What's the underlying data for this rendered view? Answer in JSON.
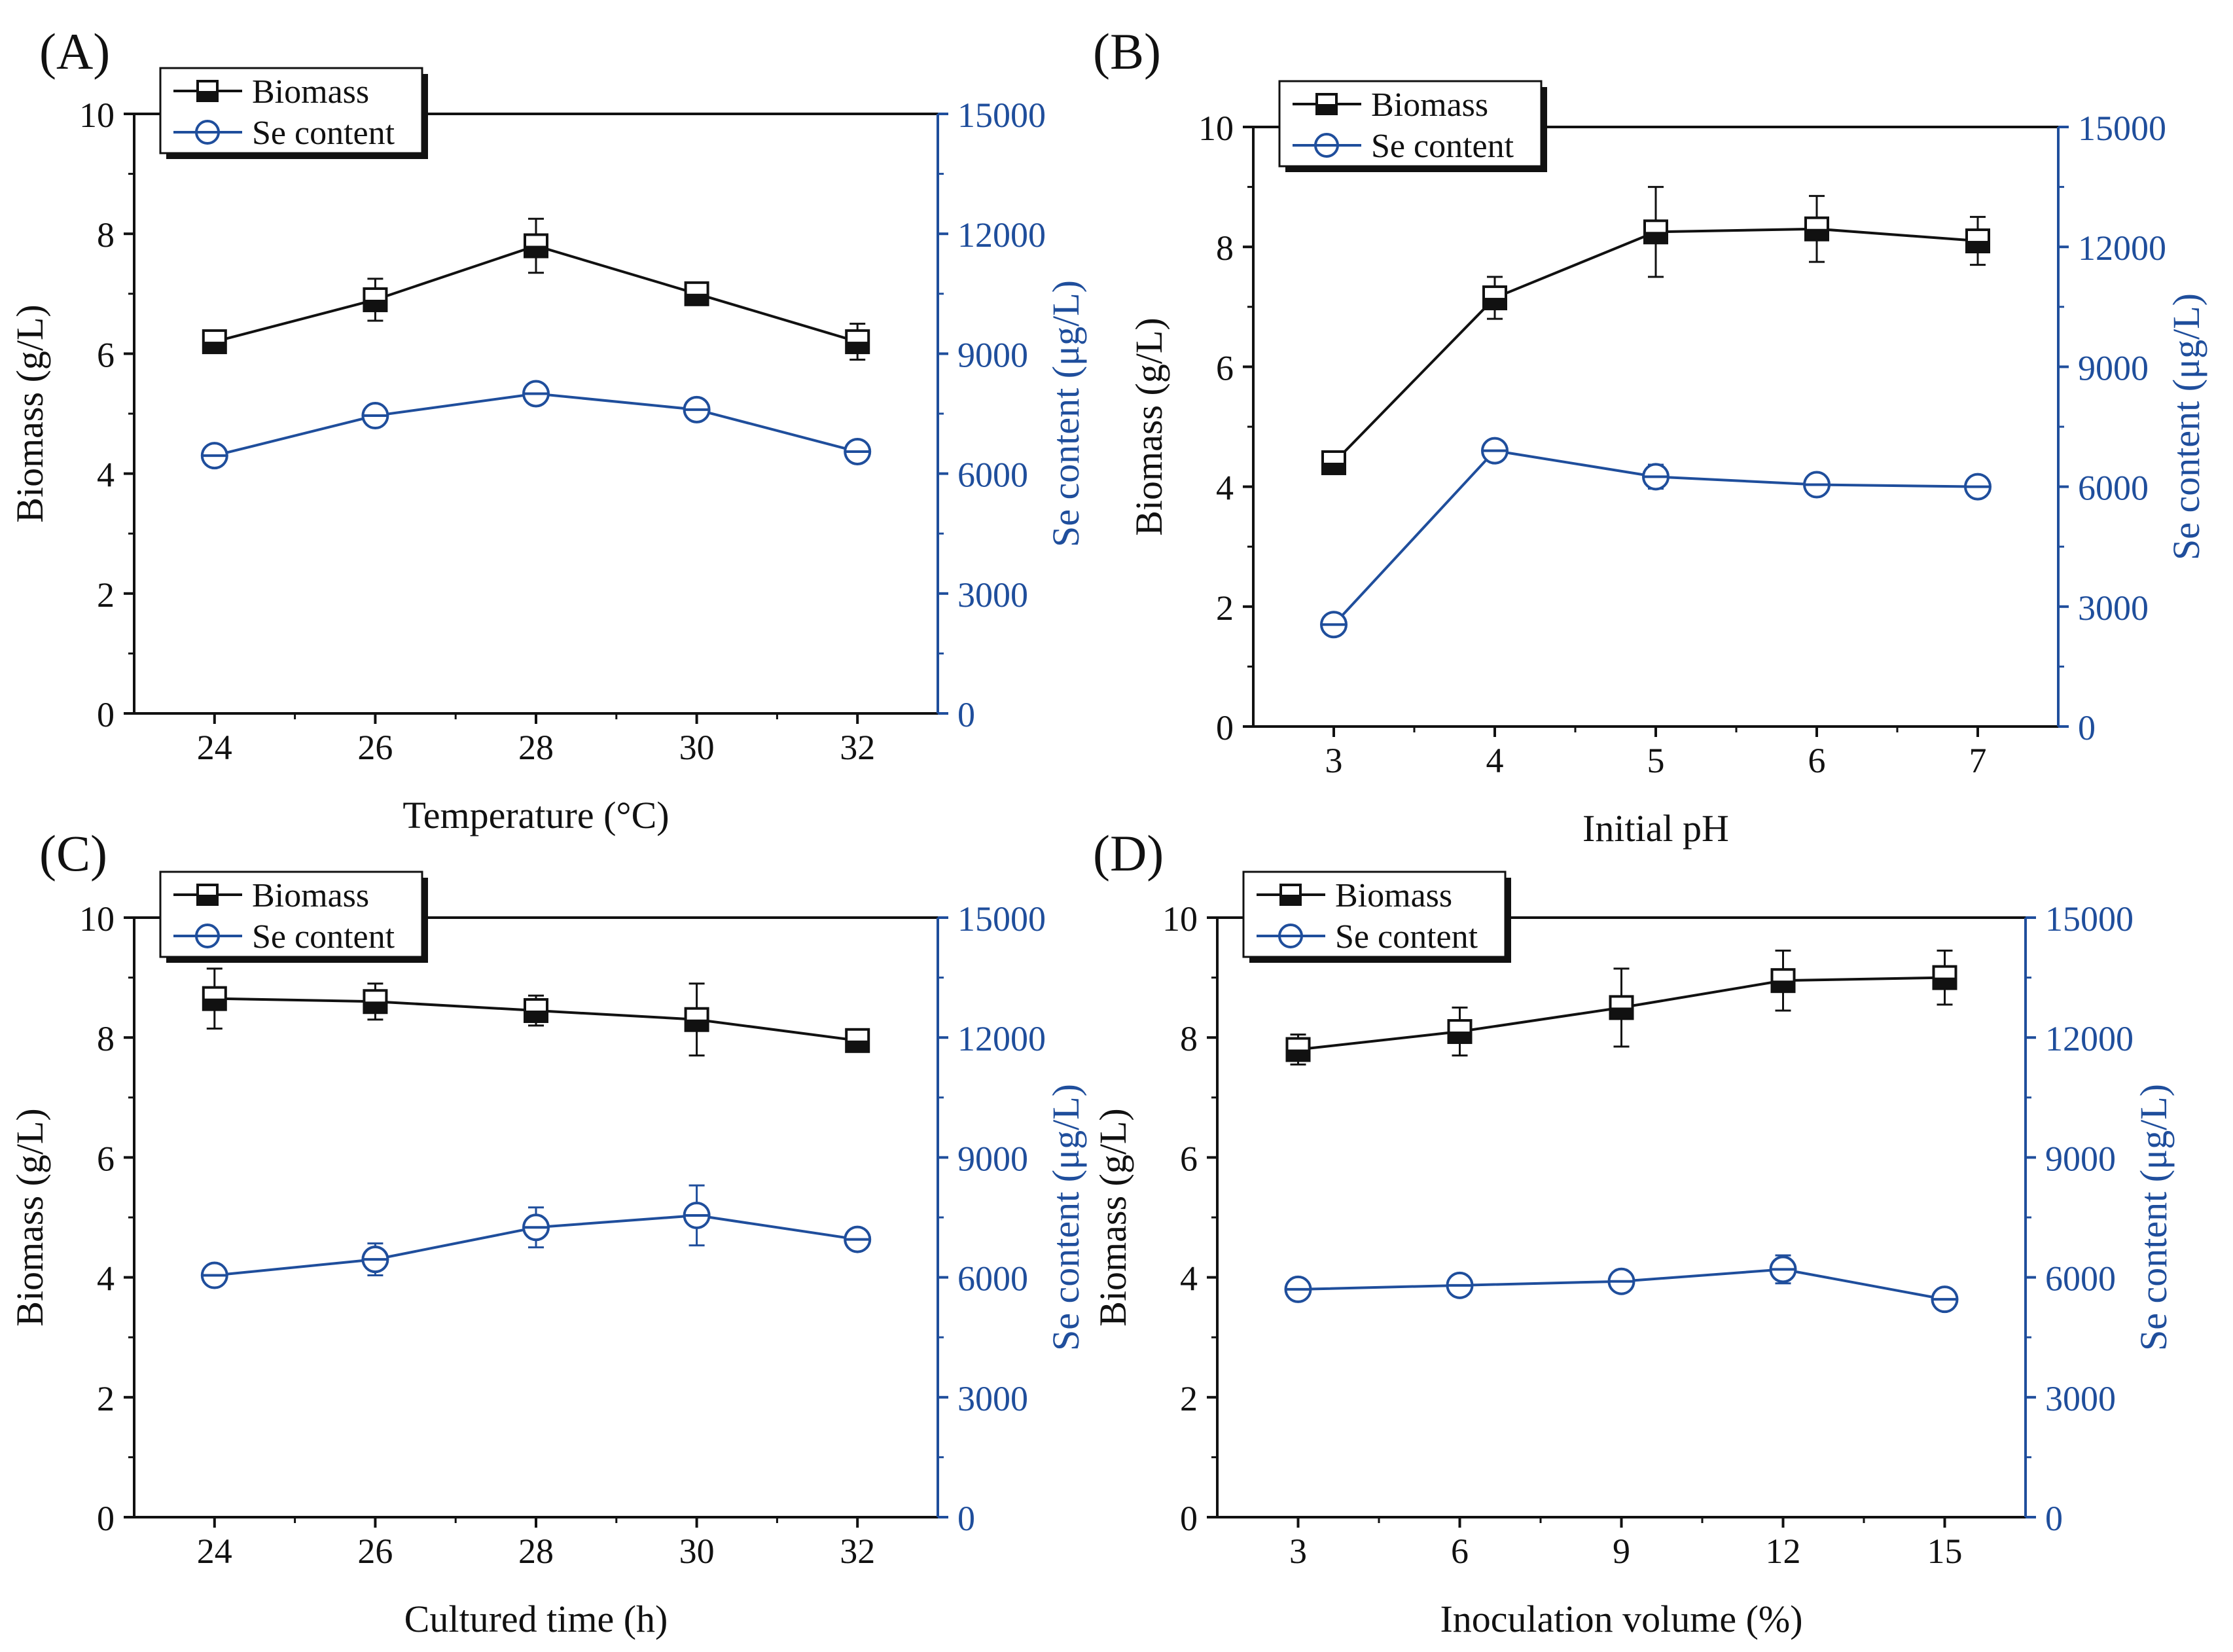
{
  "colors": {
    "biomass": "#111111",
    "se": "#1f4e9c",
    "axis": "#111111"
  },
  "chart_data": [
    {
      "panel_label": "(A)",
      "type": "line",
      "xlabel": "Temperature (°C)",
      "x": [
        24,
        26,
        28,
        30,
        32
      ],
      "xticks": [
        "24",
        "26",
        "28",
        "30",
        "32"
      ],
      "xlim": [
        23,
        33
      ],
      "ylabel": "Biomass (g/L)",
      "ylim": [
        0,
        10
      ],
      "yticks": [
        "0",
        "2",
        "4",
        "6",
        "8",
        "10"
      ],
      "y2label": "Se content (μg/L)",
      "y2lim": [
        0,
        15000
      ],
      "y2ticks": [
        "0",
        "3000",
        "6000",
        "9000",
        "12000",
        "15000"
      ],
      "series": [
        {
          "name": "Biomass",
          "axis": "left",
          "values": [
            6.2,
            6.9,
            7.8,
            7.0,
            6.2
          ],
          "errors": [
            0.1,
            0.35,
            0.45,
            0.15,
            0.3
          ]
        },
        {
          "name": "Se content",
          "axis": "right",
          "values": [
            6450,
            7450,
            8000,
            7600,
            6550
          ],
          "errors": [
            150,
            120,
            150,
            100,
            120
          ]
        }
      ],
      "legend": [
        "Biomass",
        "Se content"
      ]
    },
    {
      "panel_label": "(B)",
      "type": "line",
      "xlabel": "Initial pH",
      "x": [
        3,
        4,
        5,
        6,
        7
      ],
      "xticks": [
        "3",
        "4",
        "5",
        "6",
        "7"
      ],
      "xlim": [
        2.5,
        7.5
      ],
      "ylabel": "Biomass (g/L)",
      "ylim": [
        0,
        10
      ],
      "yticks": [
        "0",
        "2",
        "4",
        "6",
        "8",
        "10"
      ],
      "y2label": "Se content (μg/L)",
      "y2lim": [
        0,
        15000
      ],
      "y2ticks": [
        "0",
        "3000",
        "6000",
        "9000",
        "12000",
        "15000"
      ],
      "series": [
        {
          "name": "Biomass",
          "axis": "left",
          "values": [
            4.4,
            7.15,
            8.25,
            8.3,
            8.1
          ],
          "errors": [
            0.15,
            0.35,
            0.75,
            0.55,
            0.4
          ]
        },
        {
          "name": "Se content",
          "axis": "right",
          "values": [
            2550,
            6900,
            6250,
            6050,
            6000
          ],
          "errors": [
            100,
            200,
            300,
            150,
            100
          ]
        }
      ],
      "legend": [
        "Biomass",
        "Se content"
      ]
    },
    {
      "panel_label": "(C)",
      "type": "line",
      "xlabel": "Cultured time (h)",
      "x": [
        24,
        26,
        28,
        30,
        32
      ],
      "xticks": [
        "24",
        "26",
        "28",
        "30",
        "32"
      ],
      "xlim": [
        23,
        33
      ],
      "ylabel": "Biomass (g/L)",
      "ylim": [
        0,
        10
      ],
      "yticks": [
        "0",
        "2",
        "4",
        "6",
        "8",
        "10"
      ],
      "y2label": "Se content (μg/L)",
      "y2lim": [
        0,
        15000
      ],
      "y2ticks": [
        "0",
        "3000",
        "6000",
        "9000",
        "12000",
        "15000"
      ],
      "series": [
        {
          "name": "Biomass",
          "axis": "left",
          "values": [
            8.65,
            8.6,
            8.45,
            8.3,
            7.95
          ],
          "errors": [
            0.5,
            0.3,
            0.25,
            0.6,
            0.1
          ]
        },
        {
          "name": "Se content",
          "axis": "right",
          "values": [
            6050,
            6450,
            7250,
            7550,
            6950
          ],
          "errors": [
            150,
            400,
            500,
            750,
            200
          ]
        }
      ],
      "legend": [
        "Biomass",
        "Se content"
      ]
    },
    {
      "panel_label": "(D)",
      "type": "line",
      "xlabel": "Inoculation volume (%)",
      "x": [
        3,
        6,
        9,
        12,
        15
      ],
      "xticks": [
        "3",
        "6",
        "9",
        "12",
        "15"
      ],
      "xlim": [
        1.5,
        16.5
      ],
      "ylabel": "Biomass (g/L)",
      "ylim": [
        0,
        10
      ],
      "yticks": [
        "0",
        "2",
        "4",
        "6",
        "8",
        "10"
      ],
      "y2label": "Se content (μg/L)",
      "y2lim": [
        0,
        15000
      ],
      "y2ticks": [
        "0",
        "3000",
        "6000",
        "9000",
        "12000",
        "15000"
      ],
      "series": [
        {
          "name": "Biomass",
          "axis": "left",
          "values": [
            7.8,
            8.1,
            8.5,
            8.95,
            9.0
          ],
          "errors": [
            0.25,
            0.4,
            0.65,
            0.5,
            0.45
          ]
        },
        {
          "name": "Se content",
          "axis": "right",
          "values": [
            5700,
            5800,
            5900,
            6200,
            5450
          ],
          "errors": [
            100,
            200,
            150,
            350,
            250
          ]
        }
      ],
      "legend": [
        "Biomass",
        "Se content"
      ]
    }
  ]
}
